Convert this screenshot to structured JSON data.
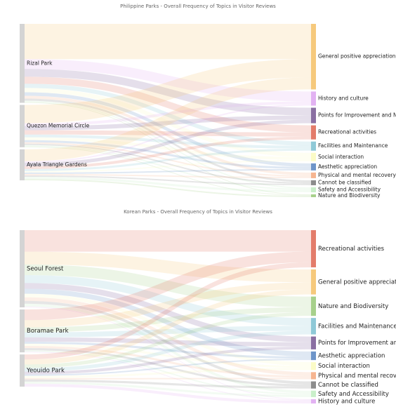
{
  "chart_data": [
    {
      "type": "sankey",
      "title": "Philippine Parks - Overall Frequency of Topics in Visitor Reviews",
      "source_color": "#d4d4d4",
      "sources": [
        "Rizal Park",
        "Quezon Memorial Circle",
        "Ayala Triangle Gardens"
      ],
      "targets": [
        {
          "name": "General positive appreciation",
          "color": "#f6c97c"
        },
        {
          "name": "History and culture",
          "color": "#e2b2f2"
        },
        {
          "name": "Points for Improvement and Negative Feedback",
          "color": "#8a6fa2"
        },
        {
          "name": "Recreational activities",
          "color": "#e37c6b"
        },
        {
          "name": "Facilities and Maintenance",
          "color": "#8fc9d7"
        },
        {
          "name": "Social interaction",
          "color": "#fbfbc6"
        },
        {
          "name": "Aesthetic appreciation",
          "color": "#6e95c9"
        },
        {
          "name": "Physical and mental recovery",
          "color": "#f6b590"
        },
        {
          "name": "Cannot be classified",
          "color": "#8c8c8c"
        },
        {
          "name": "Safety and Accessibility",
          "color": "#c9efc9"
        },
        {
          "name": "Nature and Biodiversity",
          "color": "#a7d08b"
        }
      ],
      "flows": [
        [
          50,
          14,
          11,
          10,
          6,
          6,
          5,
          4,
          3,
          2,
          1
        ],
        [
          26,
          4,
          6,
          6,
          4,
          4,
          3,
          2,
          2,
          2,
          1
        ],
        [
          17,
          2,
          5,
          4,
          3,
          2,
          2,
          2,
          2,
          3,
          2
        ]
      ]
    },
    {
      "type": "sankey",
      "title": "Korean Parks - Overall Frequency of Topics in Visitor Reviews",
      "source_color": "#d4d4d4",
      "sources": [
        "Seoul Forest",
        "Boramae Park",
        "Yeouido Park"
      ],
      "targets": [
        {
          "name": "Recreational activities",
          "color": "#e37c6b"
        },
        {
          "name": "General positive appreciation",
          "color": "#f6c97c"
        },
        {
          "name": "Nature and Biodiversity",
          "color": "#a7d08b"
        },
        {
          "name": "Facilities and Maintenance",
          "color": "#8fc9d7"
        },
        {
          "name": "Points for Improvement and Negative Feedback",
          "color": "#8a6fa2"
        },
        {
          "name": "Aesthetic appreciation",
          "color": "#6e95c9"
        },
        {
          "name": "Social interaction",
          "color": "#fbfbc6"
        },
        {
          "name": "Physical and mental recovery",
          "color": "#f6b590"
        },
        {
          "name": "Cannot be classified",
          "color": "#8c8c8c"
        },
        {
          "name": "Safety and Accessibility",
          "color": "#c9efc9"
        },
        {
          "name": "History and culture",
          "color": "#e2b2f2"
        }
      ],
      "flows": [
        [
          30,
          18,
          15,
          11,
          8,
          7,
          5,
          5,
          4,
          4,
          1
        ],
        [
          15,
          10,
          7,
          7,
          6,
          3,
          3,
          3,
          3,
          2,
          1
        ],
        [
          7,
          7,
          5,
          5,
          4,
          2,
          3,
          2,
          3,
          3,
          4
        ]
      ]
    }
  ]
}
